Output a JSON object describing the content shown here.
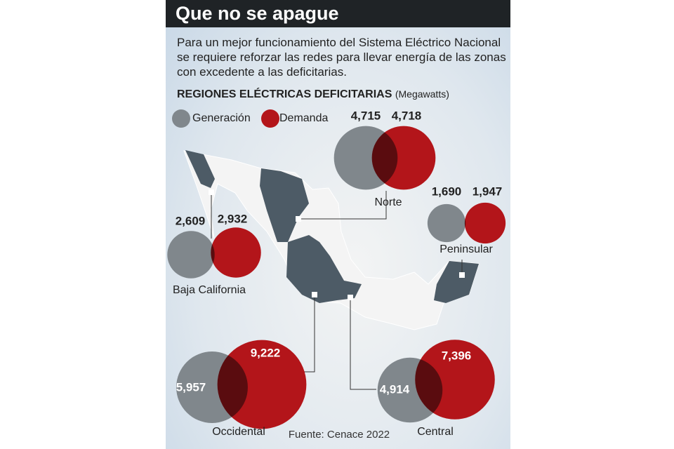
{
  "chart_data": {
    "type": "bubble",
    "title": "Que no se apague",
    "subtitle": "Para un mejor funcionamiento del Sistema Eléctrico Nacional se requiere reforzar las redes para llevar energía de las zonas con excedente a las deficitarias.",
    "heading": "REGIONES ELÉCTRICAS DEFICITARIAS",
    "unit": "(Megawatts)",
    "source": "Fuente: Cenace 2022",
    "categories": [
      "Norte",
      "Peninsular",
      "Baja California",
      "Occidental",
      "Central"
    ],
    "series": [
      {
        "name": "Generación",
        "color": "#80878c",
        "values": [
          4715,
          1690,
          2609,
          5957,
          4914
        ],
        "value_labels": [
          "4,715",
          "1,690",
          "2,609",
          "5,957",
          "4,914"
        ]
      },
      {
        "name": "Demanda",
        "color": "#b3151a",
        "values": [
          4718,
          1947,
          2932,
          9222,
          7396
        ],
        "value_labels": [
          "4,718",
          "1,947",
          "2,932",
          "9,222",
          "7,396"
        ]
      }
    ]
  }
}
